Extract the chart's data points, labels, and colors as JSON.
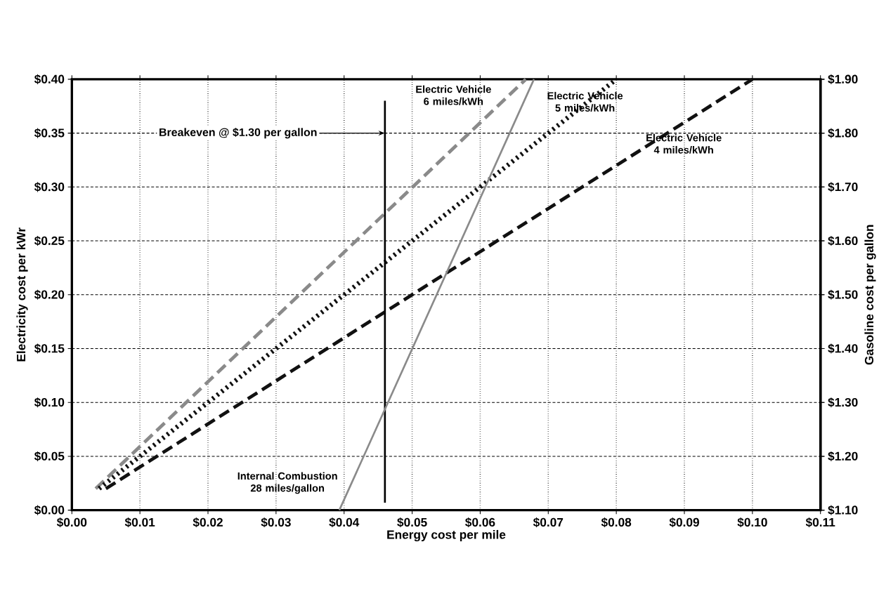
{
  "chart_data": {
    "type": "line",
    "xlabel": "Energy cost per mile",
    "ylabel": "Electricity cost per kWr",
    "y2label": "Gasoline cost per gallon",
    "xlim": [
      0,
      0.11
    ],
    "xticks": [
      {
        "value": 0,
        "label": "$0.00"
      },
      {
        "value": 0.01,
        "label": "$0.01"
      },
      {
        "value": 0.02,
        "label": "$0.02"
      },
      {
        "value": 0.03,
        "label": "$0.03"
      },
      {
        "value": 0.04,
        "label": "$0.04"
      },
      {
        "value": 0.05,
        "label": "$0.05"
      },
      {
        "value": 0.06,
        "label": "$0.06"
      },
      {
        "value": 0.07,
        "label": "$0.07"
      },
      {
        "value": 0.08,
        "label": "$0.08"
      },
      {
        "value": 0.09,
        "label": "$0.09"
      },
      {
        "value": 0.1,
        "label": "$0.10"
      },
      {
        "value": 0.11,
        "label": "$0.11"
      }
    ],
    "ylim": [
      0,
      0.4
    ],
    "yticks": [
      {
        "value": 0,
        "label": "$0.00"
      },
      {
        "value": 0.05,
        "label": "$0.05"
      },
      {
        "value": 0.1,
        "label": "$0.10"
      },
      {
        "value": 0.15,
        "label": "$0.15"
      },
      {
        "value": 0.2,
        "label": "$0.20"
      },
      {
        "value": 0.25,
        "label": "$0.25"
      },
      {
        "value": 0.3,
        "label": "$0.30"
      },
      {
        "value": 0.35,
        "label": "$0.35"
      },
      {
        "value": 0.4,
        "label": "$0.40"
      }
    ],
    "y2lim": [
      1.1,
      1.9
    ],
    "y2ticks": [
      {
        "value": 1.1,
        "label": "$1.10"
      },
      {
        "value": 1.2,
        "label": "$1.20"
      },
      {
        "value": 1.3,
        "label": "$1.30"
      },
      {
        "value": 1.4,
        "label": "$1.40"
      },
      {
        "value": 1.5,
        "label": "$1.50"
      },
      {
        "value": 1.6,
        "label": "$1.60"
      },
      {
        "value": 1.7,
        "label": "$1.70"
      },
      {
        "value": 1.8,
        "label": "$1.80"
      },
      {
        "value": 1.9,
        "label": "$1.90"
      }
    ],
    "grid": true,
    "series": [
      {
        "name": "Electric Vehicle 6 miles/kWh",
        "color": "#8a8a8a",
        "line_style": "dashed",
        "x": [
          0.0035,
          0.0667
        ],
        "values": [
          0.02,
          0.4
        ]
      },
      {
        "name": "Electric Vehicle 5 miles/kWh",
        "color": "#111111",
        "line_style": "dotted",
        "x": [
          0.004,
          0.08
        ],
        "values": [
          0.02,
          0.4
        ]
      },
      {
        "name": "Electric Vehicle 4 miles/kWh",
        "color": "#111111",
        "line_style": "dashed",
        "x": [
          0.005,
          0.1
        ],
        "values": [
          0.02,
          0.4
        ]
      },
      {
        "name": "Internal Combustion 28 miles/gallon",
        "color": "#8a8a8a",
        "line_style": "solid",
        "axis": "y2",
        "x": [
          0.0393,
          0.0679
        ],
        "values": [
          1.1,
          1.9
        ]
      },
      {
        "color": "#000000",
        "line_style": "solid",
        "x": [
          0.046,
          0.046
        ],
        "values": [
          0.007,
          0.38
        ]
      }
    ],
    "annotations": [
      {
        "text": "Breakeven @ $1.30 per gallon",
        "x": 0.046,
        "y": 0.35
      }
    ]
  }
}
